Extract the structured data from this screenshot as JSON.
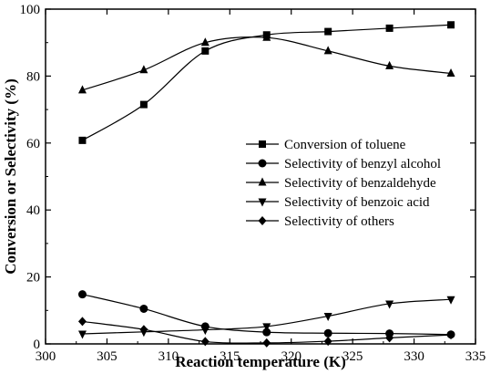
{
  "chart_data": {
    "type": "line",
    "title": "",
    "xlabel": "Reaction temperature (K)",
    "ylabel": "Conversion or Selectivity (%)",
    "xlim": [
      300,
      335
    ],
    "ylim": [
      0,
      100
    ],
    "xticks": [
      300,
      305,
      310,
      315,
      320,
      325,
      330,
      335
    ],
    "yticks": [
      0,
      20,
      40,
      60,
      80,
      100
    ],
    "x": [
      303,
      308,
      313,
      318,
      323,
      328,
      333
    ],
    "legend_position": "center-right",
    "grid": false,
    "series": [
      {
        "name": "Conversion of toluene",
        "marker": "square",
        "color": "#000000",
        "values": [
          60.8,
          71.5,
          87.5,
          92.3,
          93.3,
          94.3,
          95.3
        ]
      },
      {
        "name": "Selectivity of benzyl alcohol",
        "marker": "circle",
        "color": "#000000",
        "values": [
          14.8,
          10.5,
          5.2,
          3.5,
          3.2,
          3.1,
          2.8
        ]
      },
      {
        "name": "Selectivity of benzaldehyde",
        "marker": "triangle-up",
        "color": "#000000",
        "values": [
          75.8,
          81.8,
          90.0,
          91.5,
          87.5,
          83.0,
          80.8
        ]
      },
      {
        "name": "Selectivity of benzoic acid",
        "marker": "triangle-down",
        "color": "#000000",
        "values": [
          3.0,
          3.6,
          4.2,
          5.2,
          8.3,
          12.0,
          13.3
        ]
      },
      {
        "name": "Selectivity of others",
        "marker": "diamond",
        "color": "#000000",
        "values": [
          6.7,
          4.3,
          0.7,
          0.3,
          0.8,
          1.8,
          2.7
        ]
      }
    ]
  }
}
